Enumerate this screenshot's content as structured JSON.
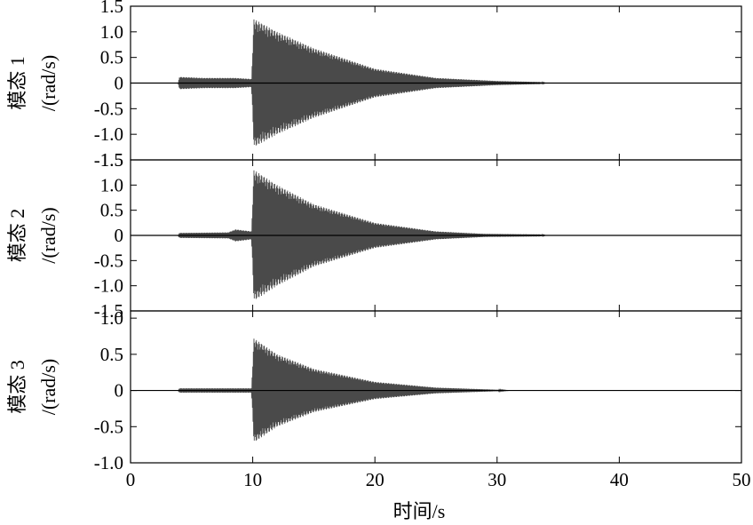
{
  "chart_data": {
    "type": "line",
    "xlabel": "时间/s",
    "x_ticks": [
      "0",
      "10",
      "20",
      "30",
      "40",
      "50"
    ],
    "xlim": [
      0,
      50
    ],
    "color": "#4a4a4a",
    "subplots": [
      {
        "ylabel_line1": "模态 1",
        "ylabel_line2": "/(rad/s)",
        "ylim": [
          -1.5,
          1.5
        ],
        "y_ticks": [
          "1.5",
          "1.0",
          "0.5",
          "0",
          "-0.5",
          "-1.0",
          "-1.5"
        ],
        "y_tick_values": [
          1.5,
          1.0,
          0.5,
          0,
          -0.5,
          -1.0,
          -1.5
        ],
        "envelope": [
          {
            "x": 0,
            "amp": 0
          },
          {
            "x": 3.9,
            "amp": 0
          },
          {
            "x": 4.0,
            "amp": 0.12
          },
          {
            "x": 6.0,
            "amp": 0.1
          },
          {
            "x": 8.5,
            "amp": 0.1
          },
          {
            "x": 9.9,
            "amp": 0.08
          },
          {
            "x": 10.1,
            "amp": 1.25
          },
          {
            "x": 12.0,
            "amp": 1.0
          },
          {
            "x": 15.0,
            "amp": 0.68
          },
          {
            "x": 20.0,
            "amp": 0.28
          },
          {
            "x": 25.0,
            "amp": 0.1
          },
          {
            "x": 30.0,
            "amp": 0.04
          },
          {
            "x": 33.5,
            "amp": 0.02
          },
          {
            "x": 34.0,
            "amp": 0
          },
          {
            "x": 50,
            "amp": 0
          }
        ]
      },
      {
        "ylabel_line1": "模态 2",
        "ylabel_line2": "/(rad/s)",
        "ylim": [
          -1.5,
          1.5
        ],
        "y_ticks": [
          "1.5",
          "1.0",
          "0.5",
          "0",
          "-0.5",
          "-1.0",
          "-1.5"
        ],
        "y_tick_values": [
          1.5,
          1.0,
          0.5,
          0,
          -0.5,
          -1.0,
          -1.5
        ],
        "envelope": [
          {
            "x": 0,
            "amp": 0
          },
          {
            "x": 3.9,
            "amp": 0
          },
          {
            "x": 4.0,
            "amp": 0.05
          },
          {
            "x": 8.0,
            "amp": 0.06
          },
          {
            "x": 8.6,
            "amp": 0.12
          },
          {
            "x": 9.9,
            "amp": 0.08
          },
          {
            "x": 10.1,
            "amp": 1.3
          },
          {
            "x": 12.0,
            "amp": 1.0
          },
          {
            "x": 15.0,
            "amp": 0.62
          },
          {
            "x": 20.0,
            "amp": 0.25
          },
          {
            "x": 25.0,
            "amp": 0.08
          },
          {
            "x": 29.0,
            "amp": 0.03
          },
          {
            "x": 33.5,
            "amp": 0.02
          },
          {
            "x": 34.0,
            "amp": 0
          },
          {
            "x": 50,
            "amp": 0
          }
        ]
      },
      {
        "ylabel_line1": "模态 3",
        "ylabel_line2": "/(rad/s)",
        "ylim": [
          -1.0,
          1.1
        ],
        "y_ticks": [
          "1.0",
          "0.5",
          "0",
          "-0.5",
          "-1.0"
        ],
        "y_tick_values": [
          1.0,
          0.5,
          0,
          -0.5,
          -1.0
        ],
        "envelope": [
          {
            "x": 0,
            "amp": 0
          },
          {
            "x": 3.9,
            "amp": 0
          },
          {
            "x": 4.0,
            "amp": 0.03
          },
          {
            "x": 9.9,
            "amp": 0.03
          },
          {
            "x": 10.1,
            "amp": 0.72
          },
          {
            "x": 12.0,
            "amp": 0.5
          },
          {
            "x": 15.0,
            "amp": 0.3
          },
          {
            "x": 20.0,
            "amp": 0.12
          },
          {
            "x": 25.0,
            "amp": 0.04
          },
          {
            "x": 30.0,
            "amp": 0.01
          },
          {
            "x": 31.0,
            "amp": 0
          },
          {
            "x": 50,
            "amp": 0
          }
        ]
      }
    ]
  }
}
